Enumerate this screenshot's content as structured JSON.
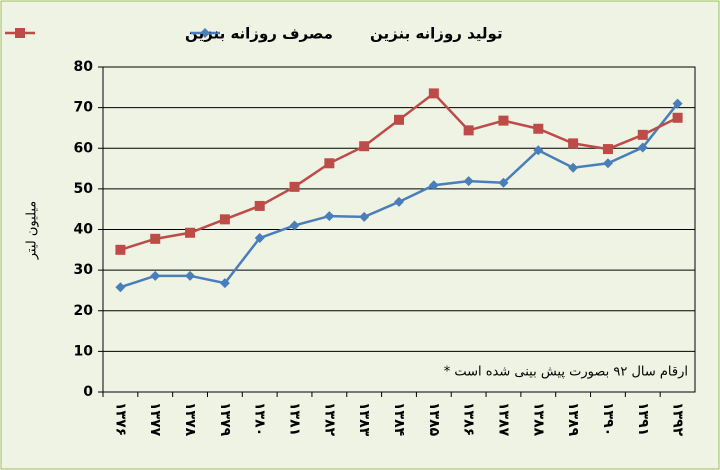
{
  "chart_data": {
    "type": "line",
    "y_label": "میلیون لیتر",
    "annotation": "* ارقام سال ۹۲ بصورت پیش بینی شده است",
    "categories": [
      "۱۳۷۶",
      "۱۳۷۷",
      "۱۳۷۸",
      "۱۳۷۹",
      "۱۳۸۰",
      "۱۳۸۱",
      "۱۳۸۲",
      "۱۳۸۳",
      "۱۳۸۴",
      "۱۳۸۵",
      "۱۳۸۶",
      "۱۳۸۷",
      "۱۳۸۸",
      "۱۳۸۹",
      "۱۳۹۰",
      "۱۳۹۱",
      "۱۳۹۲"
    ],
    "series": [
      {
        "name": "تولید روزانه بنزین",
        "color": "#4a7ebb",
        "marker": "diamond",
        "values": [
          25.8,
          28.6,
          28.6,
          26.8,
          37.9,
          41,
          43.3,
          43.1,
          46.8,
          50.9,
          51.9,
          51.5,
          59.5,
          55.2,
          56.3,
          60.2,
          71
        ]
      },
      {
        "name": "مصرف روزانه بنزین",
        "color": "#be4b48",
        "marker": "square",
        "values": [
          35,
          37.7,
          39.2,
          42.5,
          45.8,
          50.5,
          56.3,
          60.5,
          67,
          73.5,
          64.4,
          66.8,
          64.8,
          61.2,
          59.8,
          63.3,
          67.5
        ]
      }
    ],
    "ylim": [
      0,
      80
    ],
    "yticks": [
      0,
      10,
      20,
      30,
      40,
      50,
      60,
      70,
      80
    ],
    "grid": true
  }
}
